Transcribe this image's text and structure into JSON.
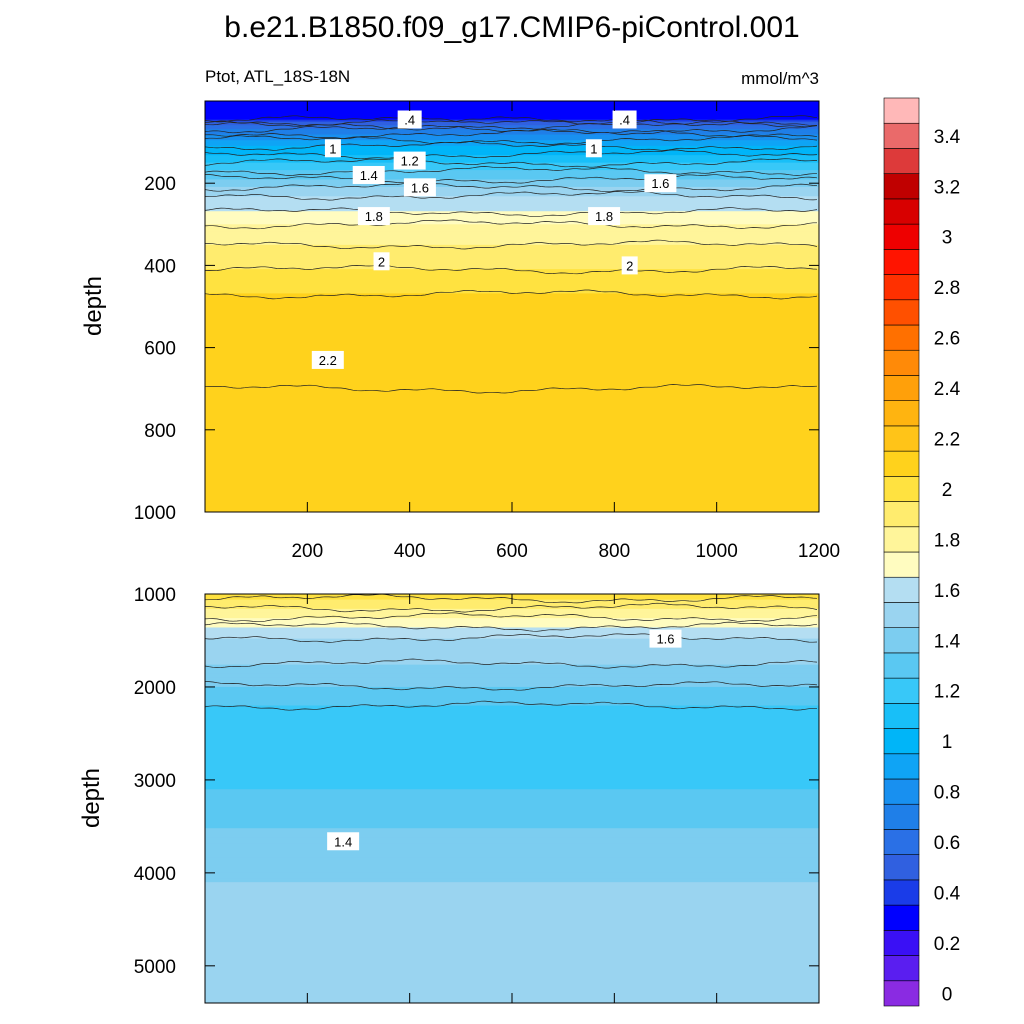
{
  "figure_title": "b.e21.B1850.f09_g17.CMIP6-piControl.001",
  "chart_data": [
    {
      "type": "heatmap",
      "subtitle_left": "Ptot, ATL_18S-18N",
      "subtitle_right": "mmol/m^3",
      "xlabel": "",
      "ylabel": "depth",
      "xlim": [
        0,
        1200
      ],
      "ylim": [
        0,
        1000
      ],
      "y_inverted": true,
      "xticks": [
        200,
        400,
        600,
        800,
        1000,
        1200
      ],
      "xtick_labels": [
        "200",
        "400",
        "600",
        "800",
        "1000",
        "1200"
      ],
      "yticks": [
        200,
        400,
        600,
        800,
        1000
      ],
      "ytick_labels": [
        "200",
        "400",
        "600",
        "800",
        "1000"
      ],
      "depth_profile": [
        [
          0,
          0.3
        ],
        [
          45,
          0.35
        ],
        [
          50,
          0.5
        ],
        [
          80,
          0.8
        ],
        [
          110,
          1.0
        ],
        [
          150,
          1.2
        ],
        [
          190,
          1.4
        ],
        [
          230,
          1.6
        ],
        [
          270,
          1.7
        ],
        [
          300,
          1.8
        ],
        [
          350,
          1.9
        ],
        [
          410,
          2.0
        ],
        [
          470,
          2.1
        ],
        [
          520,
          2.15
        ],
        [
          700,
          2.2
        ],
        [
          900,
          2.15
        ],
        [
          1000,
          2.1
        ]
      ],
      "contour_labels": [
        {
          "text": ".4",
          "x": 400,
          "y": 45
        },
        {
          "text": ".4",
          "x": 820,
          "y": 45
        },
        {
          "text": "1",
          "x": 250,
          "y": 115
        },
        {
          "text": "1",
          "x": 760,
          "y": 115
        },
        {
          "text": "1.2",
          "x": 400,
          "y": 145
        },
        {
          "text": "1.4",
          "x": 320,
          "y": 180
        },
        {
          "text": "1.6",
          "x": 420,
          "y": 210
        },
        {
          "text": "1.6",
          "x": 890,
          "y": 200
        },
        {
          "text": "1.8",
          "x": 330,
          "y": 280
        },
        {
          "text": "1.8",
          "x": 780,
          "y": 280
        },
        {
          "text": "2",
          "x": 345,
          "y": 390
        },
        {
          "text": "2",
          "x": 830,
          "y": 400
        },
        {
          "text": "2.2",
          "x": 240,
          "y": 630
        }
      ]
    },
    {
      "type": "heatmap",
      "xlabel": "",
      "ylabel": "depth",
      "xlim": [
        0,
        1200
      ],
      "ylim": [
        1000,
        5400
      ],
      "y_inverted": true,
      "yticks": [
        1000,
        2000,
        3000,
        4000,
        5000
      ],
      "ytick_labels": [
        "1000",
        "2000",
        "3000",
        "4000",
        "5000"
      ],
      "depth_profile": [
        [
          1000,
          2.05
        ],
        [
          1100,
          1.95
        ],
        [
          1200,
          1.85
        ],
        [
          1300,
          1.75
        ],
        [
          1400,
          1.65
        ],
        [
          1500,
          1.58
        ],
        [
          1750,
          1.5
        ],
        [
          1950,
          1.42
        ],
        [
          2200,
          1.3
        ],
        [
          3000,
          1.25
        ],
        [
          3200,
          1.35
        ],
        [
          3650,
          1.42
        ],
        [
          4100,
          1.5
        ],
        [
          5400,
          1.55
        ]
      ],
      "contour_labels": [
        {
          "text": "1.6",
          "x": 900,
          "y": 1480
        },
        {
          "text": "1.4",
          "x": 270,
          "y": 3660
        }
      ]
    }
  ],
  "colorbar": {
    "levels": [
      0,
      0.1,
      0.2,
      0.3,
      0.4,
      0.5,
      0.6,
      0.7,
      0.8,
      0.9,
      1,
      1.1,
      1.2,
      1.3,
      1.4,
      1.5,
      1.6,
      1.7,
      1.8,
      1.9,
      2,
      2.1,
      2.2,
      2.3,
      2.4,
      2.5,
      2.6,
      2.7,
      2.8,
      2.9,
      3,
      3.1,
      3.2,
      3.3,
      3.4,
      3.5
    ],
    "tick_labels": [
      "0",
      "0.2",
      "0.4",
      "0.6",
      "0.8",
      "1",
      "1.2",
      "1.4",
      "1.6",
      "1.8",
      "2",
      "2.2",
      "2.4",
      "2.6",
      "2.8",
      "3",
      "3.2",
      "3.4"
    ],
    "colors": [
      "#8a2be2",
      "#5a1ef0",
      "#3a10f5",
      "#0000ff",
      "#1a3ce8",
      "#3060e0",
      "#2a70e6",
      "#1f7fe8",
      "#1890f0",
      "#0fa4f5",
      "#00b5f8",
      "#18bff8",
      "#38c8f8",
      "#5ac8f2",
      "#7ccdf0",
      "#9ad4f0",
      "#b4def2",
      "#fffcc0",
      "#fff59a",
      "#ffec6e",
      "#ffe240",
      "#ffd21c",
      "#ffc418",
      "#ffb410",
      "#ffa00a",
      "#ff8a08",
      "#ff7000",
      "#ff5000",
      "#ff3000",
      "#ff1400",
      "#ee0000",
      "#d80000",
      "#c00000",
      "#dd3a3a",
      "#ea6a6a",
      "#ffb8b8"
    ]
  }
}
